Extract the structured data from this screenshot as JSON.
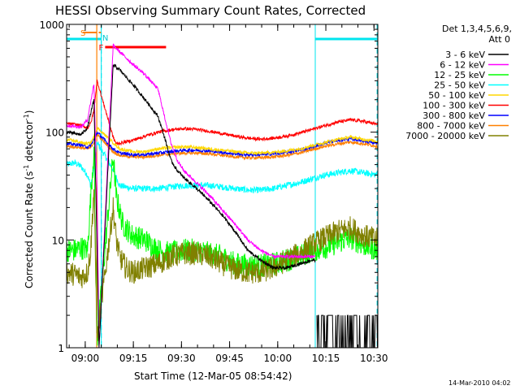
{
  "chart_data": {
    "type": "line",
    "title": "HESSI Observing Summary Count Rates, Corrected",
    "xlabel": "Start Time (12-Mar-05 08:54:42)",
    "ylabel_main": "Corrected Count Rate (s",
    "ylabel_sup1": "-1",
    "ylabel_mid": " detector",
    "ylabel_sup2": "-1",
    "ylabel_end": ")",
    "yscale": "log",
    "ylim": [
      1,
      1000
    ],
    "xlim_min": [
      -0.5,
      96.5
    ],
    "x_ticks": [
      {
        "t": 5.3,
        "label": "09:00"
      },
      {
        "t": 20.3,
        "label": "09:15"
      },
      {
        "t": 35.3,
        "label": "09:30"
      },
      {
        "t": 50.3,
        "label": "09:45"
      },
      {
        "t": 65.3,
        "label": "10:00"
      },
      {
        "t": 80.3,
        "label": "10:15"
      },
      {
        "t": 95.3,
        "label": "10:30"
      }
    ],
    "y_ticks": [
      {
        "v": 1,
        "label": "1"
      },
      {
        "v": 10,
        "label": "10"
      },
      {
        "v": 100,
        "label": "100"
      },
      {
        "v": 1000,
        "label": "1000"
      }
    ],
    "legend_header": [
      "Det 1,3,4,5,6,9,",
      "Att 0"
    ],
    "series": [
      {
        "name": "3 - 6 keV",
        "color": "#000000",
        "points": [
          [
            -0.5,
            100
          ],
          [
            4,
            95
          ],
          [
            6,
            110
          ],
          [
            8,
            200
          ],
          [
            9,
            8
          ],
          [
            9.6,
            1
          ],
          [
            14,
            420
          ],
          [
            16,
            380
          ],
          [
            20,
            280
          ],
          [
            24,
            200
          ],
          [
            28,
            140
          ],
          [
            30,
            90
          ],
          [
            32,
            55
          ],
          [
            34,
            44
          ],
          [
            36,
            38
          ],
          [
            40,
            30
          ],
          [
            44,
            23
          ],
          [
            48,
            17
          ],
          [
            52,
            12
          ],
          [
            56,
            8
          ],
          [
            60,
            6.5
          ],
          [
            64,
            5.5
          ],
          [
            68,
            5.5
          ],
          [
            72,
            6
          ],
          [
            76,
            6.5
          ],
          [
            77,
            6.5
          ]
        ]
      },
      {
        "name": "6 - 12 keV",
        "color": "#ff00ff",
        "points": [
          [
            -0.5,
            115
          ],
          [
            4,
            112
          ],
          [
            6,
            130
          ],
          [
            8,
            280
          ],
          [
            9,
            30
          ],
          [
            9.6,
            1
          ],
          [
            14,
            640
          ],
          [
            16,
            560
          ],
          [
            20,
            430
          ],
          [
            24,
            340
          ],
          [
            28,
            250
          ],
          [
            30,
            140
          ],
          [
            32,
            80
          ],
          [
            34,
            55
          ],
          [
            36,
            44
          ],
          [
            40,
            34
          ],
          [
            44,
            26
          ],
          [
            48,
            19
          ],
          [
            52,
            14
          ],
          [
            56,
            10
          ],
          [
            60,
            8
          ],
          [
            64,
            7
          ],
          [
            68,
            7
          ],
          [
            72,
            7
          ],
          [
            76,
            7
          ],
          [
            77,
            7
          ]
        ]
      },
      {
        "name": "12 - 25 keV",
        "color": "#00ff00",
        "points": [
          [
            -0.5,
            8
          ],
          [
            2,
            8
          ],
          [
            4,
            8.5
          ],
          [
            6,
            8
          ],
          [
            7,
            25
          ],
          [
            8,
            70
          ],
          [
            9,
            1.2
          ],
          [
            14,
            60
          ],
          [
            15,
            25
          ],
          [
            17,
            14
          ],
          [
            20,
            11
          ],
          [
            24,
            10
          ],
          [
            28,
            8
          ],
          [
            32,
            7.5
          ],
          [
            36,
            8
          ],
          [
            40,
            8
          ],
          [
            44,
            7.5
          ],
          [
            48,
            7
          ],
          [
            52,
            6
          ],
          [
            56,
            5.8
          ],
          [
            60,
            5.8
          ],
          [
            64,
            6
          ],
          [
            68,
            6.5
          ],
          [
            72,
            7
          ],
          [
            76,
            8
          ],
          [
            80,
            8.5
          ],
          [
            84,
            9.5
          ],
          [
            88,
            10.5
          ],
          [
            92,
            9
          ],
          [
            96.5,
            8
          ]
        ]
      },
      {
        "name": "25 - 50 keV",
        "color": "#00ffff",
        "points": [
          [
            -0.5,
            50
          ],
          [
            2,
            52
          ],
          [
            4,
            48
          ],
          [
            6,
            40
          ],
          [
            7,
            32
          ],
          [
            8,
            45
          ],
          [
            9,
            80
          ],
          [
            14,
            45
          ],
          [
            16,
            32
          ],
          [
            20,
            30
          ],
          [
            24,
            30
          ],
          [
            28,
            30
          ],
          [
            32,
            31
          ],
          [
            36,
            32
          ],
          [
            40,
            32
          ],
          [
            44,
            32
          ],
          [
            48,
            31
          ],
          [
            52,
            30
          ],
          [
            56,
            29
          ],
          [
            60,
            29
          ],
          [
            64,
            30
          ],
          [
            68,
            32
          ],
          [
            72,
            34
          ],
          [
            76,
            37
          ],
          [
            80,
            40
          ],
          [
            84,
            42
          ],
          [
            88,
            44
          ],
          [
            92,
            42
          ],
          [
            96.5,
            40
          ]
        ]
      },
      {
        "name": "50 - 100 keV",
        "color": "#ffd700",
        "points": [
          [
            -0.5,
            85
          ],
          [
            2,
            83
          ],
          [
            4,
            80
          ],
          [
            6,
            78
          ],
          [
            7,
            80
          ],
          [
            8,
            90
          ],
          [
            9,
            110
          ],
          [
            14,
            80
          ],
          [
            16,
            70
          ],
          [
            20,
            66
          ],
          [
            24,
            66
          ],
          [
            28,
            70
          ],
          [
            32,
            72
          ],
          [
            36,
            73
          ],
          [
            40,
            72
          ],
          [
            44,
            70
          ],
          [
            48,
            68
          ],
          [
            52,
            66
          ],
          [
            56,
            64
          ],
          [
            60,
            64
          ],
          [
            64,
            65
          ],
          [
            68,
            67
          ],
          [
            72,
            70
          ],
          [
            76,
            75
          ],
          [
            80,
            80
          ],
          [
            84,
            86
          ],
          [
            88,
            90
          ],
          [
            92,
            86
          ],
          [
            96.5,
            82
          ]
        ]
      },
      {
        "name": "100 - 300 keV",
        "color": "#ff0000",
        "points": [
          [
            -0.5,
            120
          ],
          [
            2,
            118
          ],
          [
            4,
            115
          ],
          [
            6,
            110
          ],
          [
            7,
            120
          ],
          [
            8,
            160
          ],
          [
            9,
            300
          ],
          [
            14,
            90
          ],
          [
            15,
            78
          ],
          [
            17,
            80
          ],
          [
            20,
            84
          ],
          [
            24,
            92
          ],
          [
            28,
            100
          ],
          [
            32,
            105
          ],
          [
            36,
            108
          ],
          [
            40,
            106
          ],
          [
            44,
            102
          ],
          [
            48,
            97
          ],
          [
            52,
            92
          ],
          [
            56,
            88
          ],
          [
            60,
            86
          ],
          [
            64,
            88
          ],
          [
            68,
            92
          ],
          [
            72,
            98
          ],
          [
            76,
            106
          ],
          [
            80,
            115
          ],
          [
            84,
            124
          ],
          [
            88,
            130
          ],
          [
            92,
            126
          ],
          [
            96.5,
            118
          ]
        ]
      },
      {
        "name": "300 - 800 keV",
        "color": "#0000ff",
        "points": [
          [
            -0.5,
            78
          ],
          [
            2,
            77
          ],
          [
            4,
            76
          ],
          [
            6,
            73
          ],
          [
            7,
            75
          ],
          [
            8,
            85
          ],
          [
            9,
            100
          ],
          [
            14,
            70
          ],
          [
            16,
            64
          ],
          [
            20,
            62
          ],
          [
            24,
            62
          ],
          [
            28,
            64
          ],
          [
            32,
            66
          ],
          [
            36,
            68
          ],
          [
            40,
            68
          ],
          [
            44,
            67
          ],
          [
            48,
            65
          ],
          [
            52,
            63
          ],
          [
            56,
            62
          ],
          [
            60,
            62
          ],
          [
            64,
            63
          ],
          [
            68,
            65
          ],
          [
            72,
            68
          ],
          [
            76,
            73
          ],
          [
            80,
            79
          ],
          [
            84,
            84
          ],
          [
            88,
            87
          ],
          [
            92,
            83
          ],
          [
            96.5,
            79
          ]
        ]
      },
      {
        "name": "800 - 7000 keV",
        "color": "#ff8000",
        "points": [
          [
            -0.5,
            74
          ],
          [
            2,
            73
          ],
          [
            4,
            72
          ],
          [
            6,
            70
          ],
          [
            7,
            72
          ],
          [
            8,
            80
          ],
          [
            9,
            96
          ],
          [
            14,
            66
          ],
          [
            16,
            61
          ],
          [
            20,
            59
          ],
          [
            24,
            59
          ],
          [
            28,
            61
          ],
          [
            32,
            63
          ],
          [
            36,
            64
          ],
          [
            40,
            64
          ],
          [
            44,
            63
          ],
          [
            48,
            61
          ],
          [
            52,
            59
          ],
          [
            56,
            58
          ],
          [
            60,
            58
          ],
          [
            64,
            59
          ],
          [
            68,
            61
          ],
          [
            72,
            64
          ],
          [
            76,
            69
          ],
          [
            80,
            74
          ],
          [
            84,
            78
          ],
          [
            88,
            81
          ],
          [
            92,
            78
          ],
          [
            96.5,
            74
          ]
        ]
      },
      {
        "name": "7000 - 20000 keV",
        "color": "#808000",
        "points": [
          [
            -0.5,
            5
          ],
          [
            2,
            4.8
          ],
          [
            4,
            4.5
          ],
          [
            6,
            5
          ],
          [
            7,
            8
          ],
          [
            8,
            30
          ],
          [
            9,
            1.2
          ],
          [
            14,
            20
          ],
          [
            15,
            10
          ],
          [
            16,
            7
          ],
          [
            18,
            5.5
          ],
          [
            20,
            5
          ],
          [
            24,
            5.5
          ],
          [
            28,
            6
          ],
          [
            32,
            7
          ],
          [
            36,
            7.5
          ],
          [
            40,
            7.5
          ],
          [
            44,
            7
          ],
          [
            48,
            6
          ],
          [
            52,
            5.3
          ],
          [
            56,
            5
          ],
          [
            60,
            5
          ],
          [
            64,
            5.5
          ],
          [
            68,
            6.5
          ],
          [
            72,
            7.5
          ],
          [
            76,
            9
          ],
          [
            80,
            10.5
          ],
          [
            84,
            12
          ],
          [
            88,
            13
          ],
          [
            92,
            11
          ],
          [
            96.5,
            10
          ]
        ]
      }
    ],
    "annotations": {
      "att_state_label": "S",
      "saa_label": "N",
      "flare_label": "F",
      "night_intervals": [
        [
          -0.5,
          10.3
        ],
        [
          77,
          96.5
        ]
      ],
      "attenuator_line_t": 8.9,
      "saa_dashed_lines_t": [
        10.3,
        96.3
      ],
      "flare_interval": [
        11.5,
        30.5
      ],
      "orange_markers": [
        [
          4.5,
          8.9
        ],
        [
          9.5,
          10.2
        ]
      ],
      "noise_interval": [
        77.5,
        96.5
      ]
    },
    "grid": false,
    "legend_placement": "right"
  },
  "stamp": "14-Mar-2010 04:02"
}
